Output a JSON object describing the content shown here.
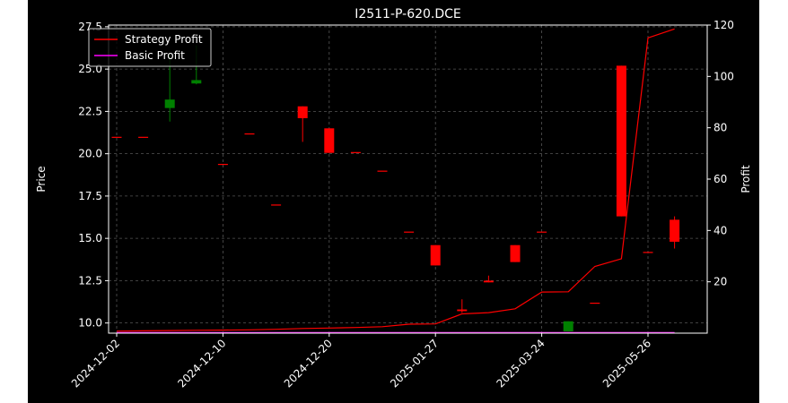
{
  "chart_data": {
    "type": "candlestick",
    "title": "I2511-P-620.DCE",
    "xlabel": "",
    "ylabel": "Price",
    "ylabel_right": "Profit",
    "ylim": [
      9.4,
      27.6
    ],
    "ylim_right": [
      0,
      120
    ],
    "yticks": [
      "10.0",
      "12.5",
      "15.0",
      "17.5",
      "20.0",
      "22.5",
      "25.0",
      "27.5"
    ],
    "yticks_right": [
      "20",
      "40",
      "60",
      "80",
      "100",
      "120"
    ],
    "xticks": [
      {
        "index": 0,
        "label": "2024-12-02"
      },
      {
        "index": 4,
        "label": "2024-12-10"
      },
      {
        "index": 8,
        "label": "2024-12-20"
      },
      {
        "index": 12,
        "label": "2025-01-27"
      },
      {
        "index": 16,
        "label": "2025-03-24"
      },
      {
        "index": 20,
        "label": "2025-05-26"
      }
    ],
    "grid": true,
    "legend_position": "top-left",
    "colors": {
      "background": "#000000",
      "up": "#008000",
      "down": "#ff0000",
      "strategy": "#ff0000",
      "basic": "#ff00ff",
      "text": "#ffffff",
      "grid": "#555555"
    },
    "candles": [
      {
        "i": 0,
        "open": 21.0,
        "high": 21.0,
        "low": 21.0,
        "close": 21.0
      },
      {
        "i": 1,
        "open": 21.0,
        "high": 21.0,
        "low": 21.0,
        "close": 21.0
      },
      {
        "i": 2,
        "open": 22.7,
        "high": 25.9,
        "low": 21.9,
        "close": 23.2
      },
      {
        "i": 3,
        "open": 24.15,
        "high": 26.4,
        "low": 24.1,
        "close": 24.35
      },
      {
        "i": 4,
        "open": 19.4,
        "high": 19.4,
        "low": 19.4,
        "close": 19.4
      },
      {
        "i": 5,
        "open": 21.2,
        "high": 21.2,
        "low": 21.2,
        "close": 21.2
      },
      {
        "i": 6,
        "open": 17.0,
        "high": 17.0,
        "low": 17.0,
        "close": 17.0
      },
      {
        "i": 7,
        "open": 22.8,
        "high": 22.8,
        "low": 20.7,
        "close": 22.1
      },
      {
        "i": 8,
        "open": 21.5,
        "high": 21.5,
        "low": 20.05,
        "close": 20.05
      },
      {
        "i": 9,
        "open": 20.1,
        "high": 20.1,
        "low": 20.1,
        "close": 20.1
      },
      {
        "i": 10,
        "open": 19.0,
        "high": 19.0,
        "low": 19.0,
        "close": 19.0
      },
      {
        "i": 11,
        "open": 15.4,
        "high": 15.4,
        "low": 15.4,
        "close": 15.4
      },
      {
        "i": 12,
        "open": 14.6,
        "high": 14.6,
        "low": 13.4,
        "close": 13.4
      },
      {
        "i": 13,
        "open": 10.8,
        "high": 11.4,
        "low": 10.6,
        "close": 10.7
      },
      {
        "i": 14,
        "open": 12.5,
        "high": 12.8,
        "low": 12.4,
        "close": 12.4
      },
      {
        "i": 15,
        "open": 14.6,
        "high": 14.6,
        "low": 13.6,
        "close": 13.6
      },
      {
        "i": 16,
        "open": 15.4,
        "high": 15.4,
        "low": 15.4,
        "close": 15.4
      },
      {
        "i": 17,
        "open": 9.5,
        "high": 10.1,
        "low": 9.5,
        "close": 10.1
      },
      {
        "i": 18,
        "open": 11.2,
        "high": 11.2,
        "low": 11.2,
        "close": 11.2
      },
      {
        "i": 19,
        "open": 25.2,
        "high": 25.2,
        "low": 16.3,
        "close": 16.3
      },
      {
        "i": 20,
        "open": 14.2,
        "high": 14.2,
        "low": 14.2,
        "close": 14.2
      },
      {
        "i": 21,
        "open": 16.1,
        "high": 16.3,
        "low": 14.4,
        "close": 14.8
      }
    ],
    "series": [
      {
        "name": "Strategy Profit",
        "x": [
          0,
          1,
          2,
          3,
          4,
          5,
          6,
          7,
          8,
          9,
          10,
          11,
          12,
          13,
          14,
          15,
          16,
          17,
          18,
          19,
          20,
          21
        ],
        "values": [
          0.8,
          0.9,
          1.0,
          1.1,
          1.2,
          1.3,
          1.5,
          1.8,
          2.0,
          2.2,
          2.5,
          3.5,
          3.6,
          7.5,
          8.0,
          9.5,
          16.0,
          16.1,
          26.0,
          29.0,
          115.0,
          118.5
        ]
      },
      {
        "name": "Basic Profit",
        "x": [
          0,
          1,
          2,
          3,
          4,
          5,
          6,
          7,
          8,
          9,
          10,
          11,
          12,
          13,
          14,
          15,
          16,
          17,
          18,
          19,
          20,
          21
        ],
        "values": [
          0.2,
          0.2,
          0.2,
          0.2,
          0.2,
          0.2,
          0.2,
          0.2,
          0.2,
          0.2,
          0.2,
          0.2,
          0.2,
          0.2,
          0.2,
          0.2,
          0.2,
          0.2,
          0.2,
          0.2,
          0.2,
          0.2
        ]
      }
    ]
  }
}
